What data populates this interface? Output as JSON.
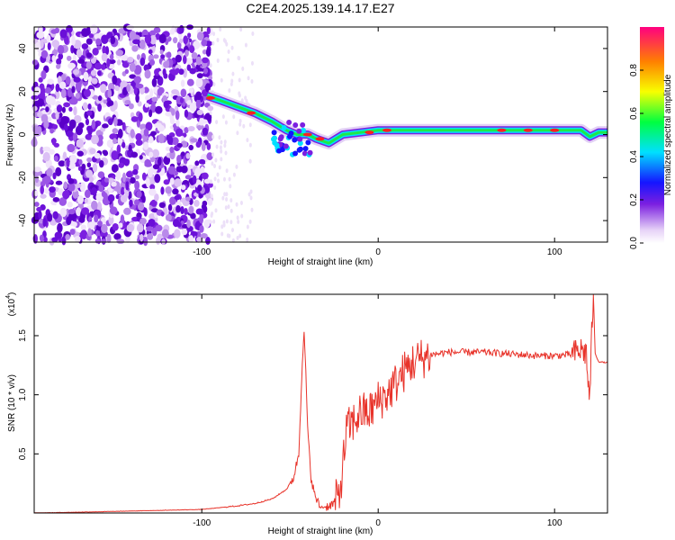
{
  "title": "C2E4.2025.139.14.17.E27",
  "spectrogram": {
    "xlabel": "Height of straight line (km)",
    "ylabel": "Frequency (Hz)",
    "xlim": [
      -195,
      130
    ],
    "ylim": [
      -50,
      50
    ],
    "xticks": [
      -100,
      0,
      100
    ],
    "yticks": [
      -40,
      -20,
      0,
      20,
      40
    ],
    "colorbar_label": "Normalized spectral amplitude",
    "colorbar_ticks": [
      0.0,
      0.2,
      0.4,
      0.6,
      0.8
    ],
    "colorbar_range": [
      0,
      1
    ]
  },
  "chart_data": [
    {
      "type": "heatmap",
      "title": "C2E4.2025.139.14.17.E27",
      "xlabel": "Height of straight line (km)",
      "ylabel": "Frequency (Hz)",
      "xlim": [
        -195,
        130
      ],
      "ylim": [
        -50,
        50
      ],
      "colorscale": "rainbow",
      "ridge_center_frequency": {
        "x": [
          -97,
          -90,
          -80,
          -70,
          -60,
          -52,
          -46,
          -40,
          -35,
          -28,
          -20,
          -10,
          0,
          10,
          40,
          80,
          115,
          120,
          125,
          130
        ],
        "y": [
          18,
          16,
          13,
          10,
          6,
          2,
          0,
          0,
          -2,
          -4,
          0,
          1,
          2,
          2,
          2,
          2,
          2,
          -1,
          1,
          1
        ]
      }
    },
    {
      "type": "line",
      "xlabel": "Height of straight line (km)",
      "ylabel": "SNR (10 * v/v)",
      "y_scale_label": "(x10",
      "y_scale_exponent": "4",
      "xlim": [
        -195,
        130
      ],
      "ylim": [
        0,
        1.85
      ],
      "xticks": [
        -100,
        0,
        100
      ],
      "yticks": [
        0.5,
        1.0,
        1.5
      ],
      "color": "#e8332a",
      "series": [
        {
          "x": [
            -195,
            -160,
            -130,
            -100,
            -80,
            -70,
            -60,
            -52,
            -48,
            -45,
            -44,
            -43,
            -42,
            -41,
            -40,
            -38,
            -36,
            -33,
            -30,
            -25,
            -22,
            -20,
            -18,
            -15,
            -10,
            -5,
            0,
            5,
            10,
            15,
            20,
            30,
            40,
            50,
            60,
            70,
            80,
            90,
            100,
            110,
            115,
            118,
            119,
            120,
            121,
            122,
            123,
            125,
            130
          ],
          "y": [
            0.0,
            0.01,
            0.02,
            0.03,
            0.06,
            0.08,
            0.12,
            0.2,
            0.3,
            0.5,
            0.9,
            1.3,
            1.5,
            1.2,
            0.7,
            0.3,
            0.15,
            0.05,
            0.05,
            0.08,
            0.15,
            0.4,
            0.7,
            0.75,
            0.85,
            0.85,
            0.95,
            1.0,
            1.1,
            1.2,
            1.28,
            1.34,
            1.36,
            1.36,
            1.36,
            1.35,
            1.34,
            1.33,
            1.33,
            1.34,
            1.38,
            1.35,
            1.1,
            0.97,
            1.5,
            1.85,
            1.35,
            1.28,
            1.27
          ]
        }
      ]
    }
  ]
}
